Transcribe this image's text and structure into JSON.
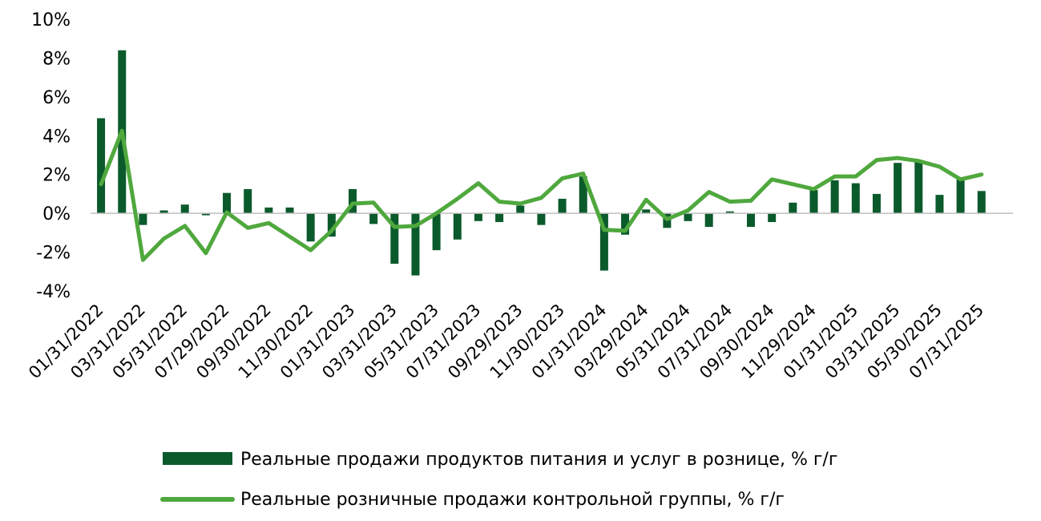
{
  "chart_data": {
    "type": "bar",
    "x": [
      "01/31/2022",
      "02/28/2022",
      "03/31/2022",
      "04/29/2022",
      "05/31/2022",
      "06/30/2022",
      "07/29/2022",
      "08/31/2022",
      "09/30/2022",
      "10/31/2022",
      "11/30/2022",
      "12/30/2022",
      "01/31/2023",
      "02/28/2023",
      "03/31/2023",
      "04/28/2023",
      "05/31/2023",
      "06/30/2023",
      "07/31/2023",
      "08/31/2023",
      "09/29/2023",
      "10/31/2023",
      "11/30/2023",
      "12/29/2023",
      "01/31/2024",
      "02/29/2024",
      "03/29/2024",
      "04/30/2024",
      "05/31/2024",
      "06/28/2024",
      "07/31/2024",
      "08/30/2024",
      "09/30/2024",
      "10/31/2024",
      "11/29/2024",
      "12/31/2024",
      "01/31/2025",
      "02/28/2025",
      "03/31/2025",
      "04/30/2025",
      "05/30/2025",
      "06/30/2025",
      "07/31/2025",
      "08/29/2025"
    ],
    "xticks": [
      "01/31/2022",
      "03/31/2022",
      "05/31/2022",
      "07/29/2022",
      "09/30/2022",
      "11/30/2022",
      "01/31/2023",
      "03/31/2023",
      "05/31/2023",
      "07/31/2023",
      "09/29/2023",
      "11/30/2023",
      "01/31/2024",
      "03/29/2024",
      "05/31/2024",
      "07/31/2024",
      "09/30/2024",
      "11/29/2024",
      "01/31/2025",
      "03/31/2025",
      "05/30/2025",
      "07/31/2025"
    ],
    "ylim": [
      -4,
      10
    ],
    "yticks": [
      "-4%",
      "-2%",
      "0%",
      "2%",
      "4%",
      "6%",
      "8%",
      "10%"
    ],
    "series": [
      {
        "name": "Реальные продажи продуктов питания и услуг в рознице, % г/г",
        "type": "bar",
        "color": "#0b5a2c",
        "values": [
          4.9,
          8.4,
          -0.6,
          0.15,
          0.45,
          -0.1,
          1.05,
          1.25,
          0.3,
          0.3,
          -1.45,
          -1.2,
          1.25,
          -0.55,
          -2.6,
          -3.2,
          -1.9,
          -1.35,
          -0.4,
          -0.45,
          0.4,
          -0.6,
          0.75,
          1.9,
          -2.95,
          -1.1,
          0.2,
          -0.75,
          -0.4,
          -0.7,
          0.1,
          -0.7,
          -0.45,
          0.55,
          1.2,
          1.7,
          1.55,
          1.0,
          2.6,
          2.7,
          0.95,
          1.75,
          1.15,
          null
        ]
      },
      {
        "name": "Реальные розничные продажи контрольной группы, % г/г",
        "type": "line",
        "color": "#4fa83d",
        "values": [
          1.5,
          4.25,
          -2.4,
          -1.3,
          -0.65,
          -2.05,
          0.05,
          -0.75,
          -0.5,
          -1.2,
          -1.9,
          -0.9,
          0.5,
          0.55,
          -0.7,
          -0.65,
          0.0,
          0.75,
          1.55,
          0.6,
          0.5,
          0.8,
          1.8,
          2.05,
          -0.85,
          -0.9,
          0.7,
          -0.3,
          0.15,
          1.1,
          0.6,
          0.65,
          1.75,
          1.5,
          1.25,
          1.9,
          1.9,
          2.75,
          2.85,
          2.7,
          2.4,
          1.75,
          2.0,
          null
        ]
      }
    ],
    "legend": {
      "position": "bottom"
    }
  }
}
